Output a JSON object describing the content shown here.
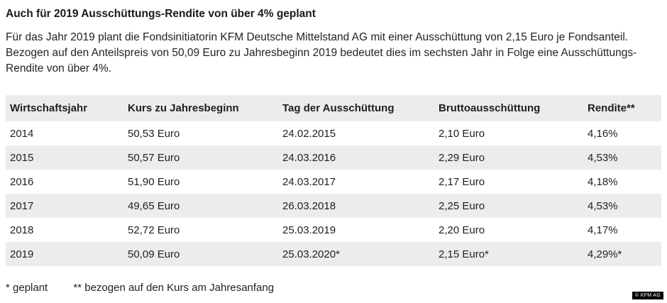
{
  "page": {
    "title": "Auch für 2019 Ausschüttungs-Rendite von über 4% geplant",
    "intro": "Für das Jahr 2019 plant die Fondsinitiatorin KFM Deutsche Mittelstand AG mit einer Ausschüttung von 2,15 Euro je Fondsanteil. Bezogen auf den Anteilspreis von 50,09 Euro zu Jahresbeginn 2019 bedeutet dies im sechsten Jahr in Folge eine Ausschüttungs-Rendite von über 4%.",
    "footnote_1": "* geplant",
    "footnote_2": "** bezogen auf den Kurs am Jahresanfang",
    "copyright": "© KFM AG"
  },
  "table": {
    "headers": [
      "Wirtschaftsjahr",
      "Kurs zu Jahresbeginn",
      "Tag der Ausschüttung",
      "Bruttoausschüttung",
      "Rendite**"
    ],
    "rows": [
      [
        "2014",
        "50,53 Euro",
        "24.02.2015",
        "2,10 Euro",
        "4,16%"
      ],
      [
        "2015",
        "50,57 Euro",
        "24.03.2016",
        "2,29 Euro",
        "4,53%"
      ],
      [
        "2016",
        "51,90 Euro",
        "24.03.2017",
        "2,17 Euro",
        "4,18%"
      ],
      [
        "2017",
        "49,65 Euro",
        "26.03.2018",
        "2,25 Euro",
        "4,53%"
      ],
      [
        "2018",
        "52,72 Euro",
        "25.03.2019",
        "2,20 Euro",
        "4,17%"
      ],
      [
        "2019",
        "50,09 Euro",
        "25.03.2020*",
        "2,15 Euro*",
        "4,29%*"
      ]
    ]
  },
  "chart_data": {
    "type": "table",
    "title": "Auch für 2019 Ausschüttungs-Rendite von über 4% geplant",
    "columns": [
      "Wirtschaftsjahr",
      "Kurs zu Jahresbeginn",
      "Tag der Ausschüttung",
      "Bruttoausschüttung",
      "Rendite**"
    ],
    "rows": [
      [
        "2014",
        "50,53 Euro",
        "24.02.2015",
        "2,10 Euro",
        "4,16%"
      ],
      [
        "2015",
        "50,57 Euro",
        "24.03.2016",
        "2,29 Euro",
        "4,53%"
      ],
      [
        "2016",
        "51,90 Euro",
        "24.03.2017",
        "2,17 Euro",
        "4,18%"
      ],
      [
        "2017",
        "49,65 Euro",
        "26.03.2018",
        "2,25 Euro",
        "4,53%"
      ],
      [
        "2018",
        "52,72 Euro",
        "25.03.2019",
        "2,20 Euro",
        "4,17%"
      ],
      [
        "2019",
        "50,09 Euro",
        "25.03.2020*",
        "2,15 Euro*",
        "4,29%*"
      ]
    ],
    "footnotes": [
      "* geplant",
      "** bezogen auf den Kurs am Jahresanfang"
    ],
    "layout_hints": {
      "striped_rows": true,
      "header_bg": "#eaecee",
      "stripe_bg": "#eaecee",
      "text_color": "#1f1f1f"
    }
  },
  "colors": {
    "header_bg": "#eaecee",
    "stripe_bg": "#eaecee",
    "text": "#1f1f1f",
    "badge_bg": "#000000",
    "badge_text": "#ffffff"
  }
}
